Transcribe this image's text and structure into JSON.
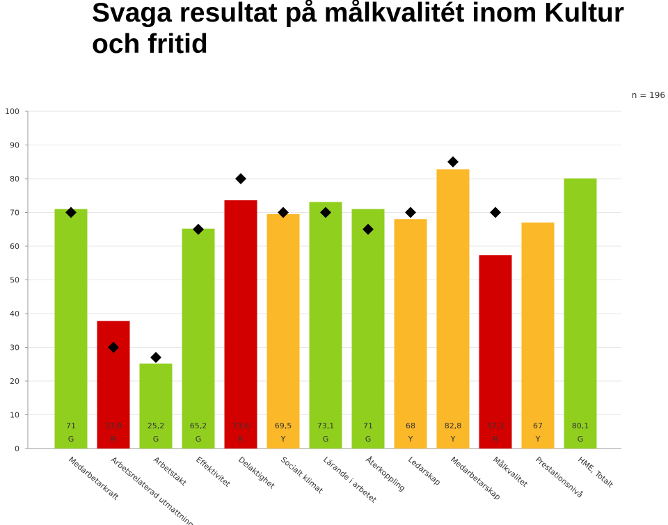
{
  "title": "Svaga resultat på målkvalitét inom Kultur och fritid",
  "sample_label": "n = 196",
  "colors": {
    "G": "#91cf1f",
    "R": "#d30000",
    "Y": "#fbb829",
    "marker": "#000000",
    "grid": "#e6e6e6"
  },
  "chart_data": {
    "type": "bar",
    "title": "Svaga resultat på målkvalitét inom Kultur och fritid",
    "ylim": [
      0,
      100
    ],
    "yticks": [
      0,
      10,
      20,
      30,
      40,
      50,
      60,
      70,
      80,
      90,
      100
    ],
    "grid": true,
    "categories": [
      "Medarbetarkraft",
      "Arbetsrelaterad utmattning",
      "Arbetstakt",
      "Effektivitet",
      "Delaktighet",
      "Socialt klimat",
      "Lärande i arbetet",
      "Återkoppling",
      "Ledarskap",
      "Medarbetarskap",
      "Målkvalitet",
      "Prestationsnivå",
      "HME, Totalt"
    ],
    "values": [
      71,
      37.8,
      25.2,
      65.2,
      73.6,
      69.5,
      73.1,
      71,
      68,
      82.8,
      57.3,
      67,
      80.1
    ],
    "value_labels": [
      "71",
      "37,8",
      "25,2",
      "65,2",
      "73,6",
      "69,5",
      "73,1",
      "71",
      "68",
      "82,8",
      "57,3",
      "67",
      "80,1"
    ],
    "status": [
      "G",
      "R",
      "G",
      "G",
      "R",
      "Y",
      "G",
      "G",
      "Y",
      "Y",
      "R",
      "Y",
      "G"
    ],
    "targets": [
      70,
      30,
      27,
      65,
      80,
      70,
      70,
      65,
      70,
      85,
      70,
      null,
      null
    ]
  }
}
